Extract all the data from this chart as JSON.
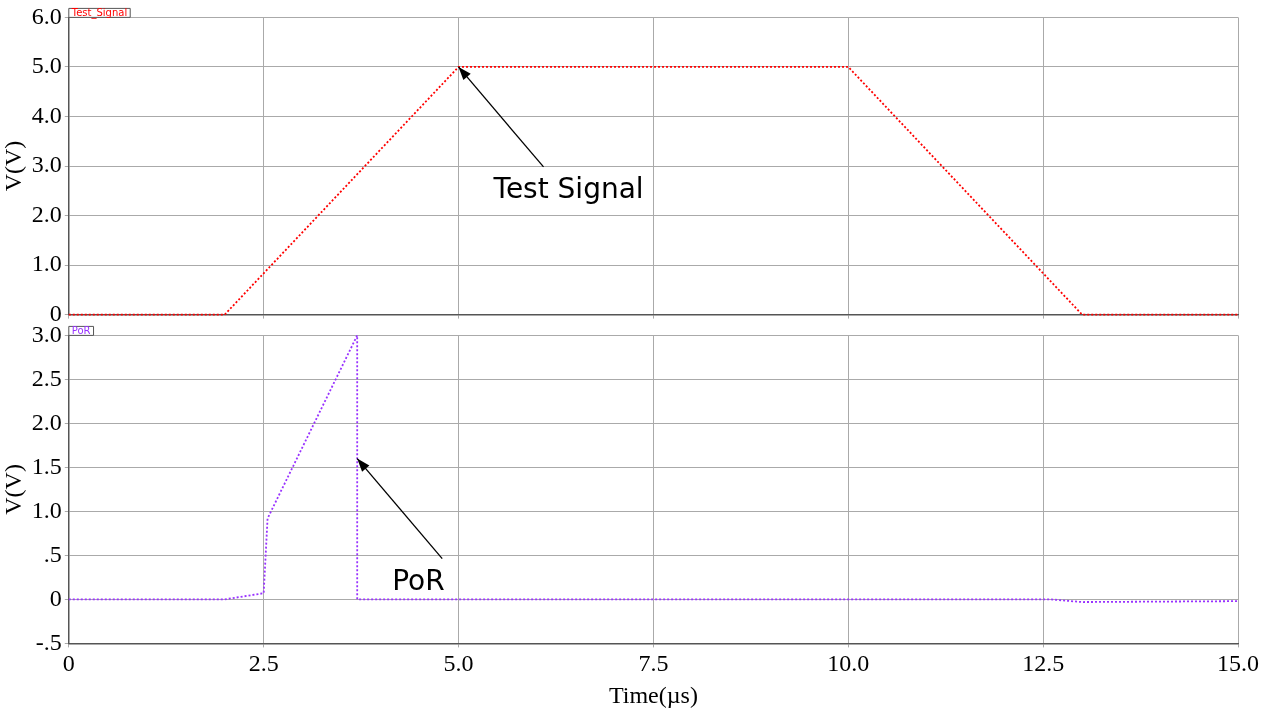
{
  "chart_data": [
    {
      "type": "line",
      "ylabel": "V(V)",
      "legend": "top left",
      "line_style": "dotted",
      "marker": "none",
      "grid": true,
      "tick_labels": "y",
      "xlim": [
        0,
        15
      ],
      "xticks": [
        0,
        2.5,
        5,
        7.5,
        10,
        12.5,
        15
      ],
      "ylim": [
        0,
        6
      ],
      "yticks": [
        0,
        {
          "value": 1,
          "label": "1.0"
        },
        {
          "value": 2,
          "label": "2.0"
        },
        {
          "value": 3,
          "label": "3.0"
        },
        {
          "value": 4,
          "label": "4.0"
        },
        {
          "value": 5,
          "label": "5.0"
        },
        {
          "value": 6,
          "label": "6.0"
        }
      ],
      "series": [
        {
          "name": "Test_Signal",
          "color": "#ff0000",
          "x": [
            0,
            2,
            5,
            10,
            13,
            15
          ],
          "values": [
            0,
            0,
            5,
            5,
            0,
            0
          ]
        }
      ],
      "annotations": [
        {
          "text": "Test Signal",
          "x": 5,
          "y": 5
        }
      ]
    },
    {
      "type": "line",
      "xlabel": "Time(µs)",
      "ylabel": "V(V)",
      "legend": "top left",
      "line_style": "dotted",
      "marker": "none",
      "grid": true,
      "xlim": [
        0,
        15
      ],
      "xticks": [
        0,
        2.5,
        {
          "value": 5,
          "label": "5.0"
        },
        {
          "value": 7.5,
          "label": "7.5"
        },
        {
          "value": 10,
          "label": "10.0"
        },
        {
          "value": 12.5,
          "label": "12.5"
        },
        {
          "value": 15,
          "label": "15.0"
        }
      ],
      "ylim": [
        -0.5,
        3
      ],
      "yticks": [
        {
          "value": -0.5,
          "label": "-.5"
        },
        0,
        {
          "value": 0.5,
          "label": ".5"
        },
        {
          "value": 1,
          "label": "1.0"
        },
        {
          "value": 1.5,
          "label": "1.5"
        },
        {
          "value": 2,
          "label": "2.0"
        },
        {
          "value": 2.5,
          "label": "2.5"
        },
        {
          "value": 3,
          "label": "3.0"
        }
      ],
      "series": [
        {
          "name": "PoR",
          "color": "#9933ff",
          "x": [
            0,
            2,
            2.5,
            2.55,
            3.7,
            3.7,
            12.6,
            13,
            15
          ],
          "values": [
            0,
            0,
            0.07,
            0.92,
            3.0,
            0,
            0,
            -0.03,
            -0.02
          ]
        }
      ],
      "annotations": [
        {
          "text": "PoR",
          "x": 3.7,
          "y": 1.6
        }
      ]
    }
  ]
}
